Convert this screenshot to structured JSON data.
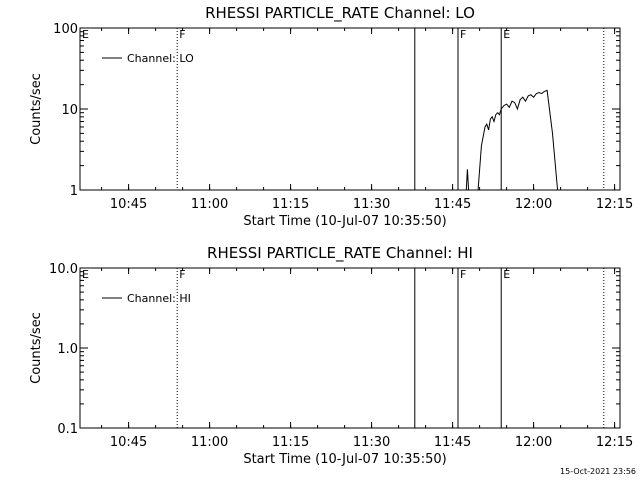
{
  "chart_data": [
    {
      "type": "line",
      "title": "RHESSI PARTICLE_RATE Channel: LO",
      "xlabel": "Start Time (10-Jul-07 10:35:50)",
      "ylabel": "Counts/sec",
      "y_scale": "log",
      "ylim": [
        1,
        100
      ],
      "y_ticks": [
        1,
        10,
        100
      ],
      "y_tick_labels": [
        "1",
        "10",
        "100"
      ],
      "x_ticks": [
        "10:45",
        "11:00",
        "11:15",
        "11:30",
        "11:45",
        "12:00",
        "12:15"
      ],
      "xlim": [
        "10:36",
        "12:16"
      ],
      "grid": false,
      "legend": {
        "position": "top-left",
        "entries": [
          "Channel: LO"
        ]
      },
      "markers": [
        {
          "time": "10:36",
          "label": "E",
          "style": "none"
        },
        {
          "time": "10:54",
          "label": "F",
          "style": "dotted"
        },
        {
          "time": "11:38",
          "label": "",
          "style": "solid"
        },
        {
          "time": "11:46",
          "label": "F",
          "style": "solid"
        },
        {
          "time": "11:54",
          "label": "E",
          "style": "solid"
        },
        {
          "time": "12:13",
          "label": "",
          "style": "dotted"
        }
      ],
      "series": [
        {
          "name": "Channel: LO",
          "segments": [
            {
              "x": [
                "11:47:30",
                "11:47:45",
                "11:48:00"
              ],
              "y": [
                0.9,
                1.8,
                0.9
              ]
            },
            {
              "x": [
                "11:49:40",
                "11:50:20",
                "11:51:00",
                "11:51:20",
                "11:51:40",
                "11:52:00",
                "11:52:20",
                "11:52:40",
                "11:53:00",
                "11:53:20",
                "11:53:40",
                "11:54:00",
                "11:54:30",
                "11:55:00",
                "11:55:30",
                "11:56:00",
                "11:56:30",
                "11:57:00",
                "11:57:30",
                "11:58:00",
                "11:58:30",
                "11:59:00",
                "11:59:30",
                "12:00:00",
                "12:00:30",
                "12:01:00",
                "12:01:30",
                "12:02:00",
                "12:02:30",
                "12:03:30",
                "12:04:30"
              ],
              "y": [
                0.9,
                3.5,
                6.0,
                6.5,
                5.5,
                7.5,
                8.0,
                7.0,
                8.5,
                9.0,
                8.5,
                10.0,
                11.0,
                11.5,
                10.5,
                12.5,
                12.0,
                10.0,
                13.0,
                14.0,
                12.5,
                14.5,
                15.0,
                14.0,
                15.5,
                16.0,
                15.5,
                16.5,
                17.0,
                5.0,
                0.9
              ]
            }
          ]
        }
      ]
    },
    {
      "type": "line",
      "title": "RHESSI PARTICLE_RATE Channel: HI",
      "xlabel": "Start Time (10-Jul-07 10:35:50)",
      "ylabel": "Counts/sec",
      "y_scale": "log",
      "ylim": [
        0.1,
        10
      ],
      "y_ticks": [
        0.1,
        1,
        10
      ],
      "y_tick_labels": [
        "0.1",
        "1.0",
        "10.0"
      ],
      "x_ticks": [
        "10:45",
        "11:00",
        "11:15",
        "11:30",
        "11:45",
        "12:00",
        "12:15"
      ],
      "xlim": [
        "10:36",
        "12:16"
      ],
      "grid": false,
      "legend": {
        "position": "top-left",
        "entries": [
          "Channel: HI"
        ]
      },
      "markers": [
        {
          "time": "10:36",
          "label": "E",
          "style": "none"
        },
        {
          "time": "10:54",
          "label": "F",
          "style": "dotted"
        },
        {
          "time": "11:38",
          "label": "",
          "style": "solid"
        },
        {
          "time": "11:46",
          "label": "F",
          "style": "solid"
        },
        {
          "time": "11:54",
          "label": "E",
          "style": "solid"
        },
        {
          "time": "12:13",
          "label": "",
          "style": "dotted"
        }
      ],
      "series": [
        {
          "name": "Channel: HI",
          "segments": []
        }
      ]
    }
  ],
  "footer": {
    "timestamp": "15-Oct-2021 23:56"
  }
}
